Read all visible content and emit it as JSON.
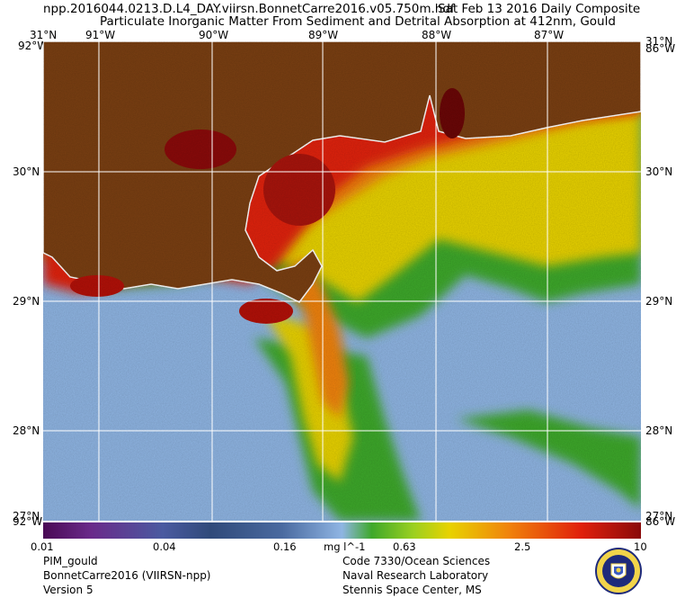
{
  "header": {
    "filename": "npp.2016044.0213.D.L4_DAY.viirsn.BonnetCarre2016.v05.750m.hdf",
    "date": "Sat Feb 13 2016 Daily Composite",
    "product": "Particulate Inorganic Matter From Sediment and Detrital Absorption at 412nm, Gould"
  },
  "axes": {
    "lon_top": [
      "91°W",
      "90°W",
      "89°W",
      "88°W",
      "87°W"
    ],
    "lat_left": [
      "31°N",
      "30°N",
      "29°N",
      "28°N",
      "27°N"
    ],
    "lat_right": [
      "31°N",
      "30°N",
      "29°N",
      "28°N",
      "27°N"
    ],
    "corner_labels": {
      "top_left_lon": "92°W",
      "top_right_lon": "86°W",
      "bottom_left_lon": "92°W",
      "bottom_right_lon": "86°W"
    }
  },
  "colorbar": {
    "ticks": [
      "0.01",
      "0.04",
      "0.16",
      "0.63",
      "2.5",
      "10"
    ],
    "units": "mg l^-1",
    "scale": "log",
    "range": [
      0.01,
      10
    ]
  },
  "footer": {
    "left": [
      "PIM_gould",
      "BonnetCarre2016 (VIIRSN-npp)",
      "Version 5"
    ],
    "right": [
      "Code 7330/Ocean Sciences",
      "Naval Research Laboratory",
      "Stennis Space Center, MS"
    ]
  },
  "colors": {
    "land": "#7a3f12",
    "gridline": "#ffffff",
    "ocean_low": "#8fb5e3",
    "shelf_green": "#3ea82a",
    "mid_yellow": "#e8d200",
    "high_red": "#e0200c",
    "coastal_darkred": "#8a0a0a"
  },
  "icons": {
    "logo": "nrl-seal-icon"
  }
}
